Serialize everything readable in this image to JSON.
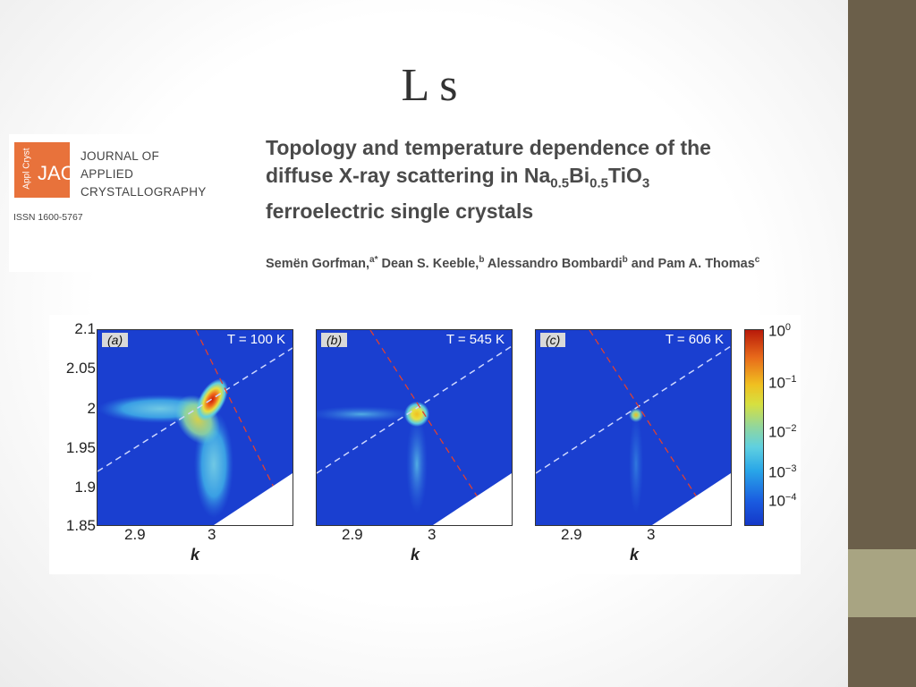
{
  "slide": {
    "title": "L s"
  },
  "journal_logo": {
    "side_text": "Appl Cryst",
    "abbr": "JAC",
    "lines": [
      "JOURNAL OF",
      "APPLIED",
      "CRYSTALLOGRAPHY"
    ],
    "issn": "ISSN 1600-5767"
  },
  "paper": {
    "title_line1": "Topology and temperature dependence of the",
    "title_line2_pre": "diffuse X-ray scattering in Na",
    "title_sub1": "0.5",
    "title_mid": "Bi",
    "title_sub2": "0.5",
    "title_mid2": "TiO",
    "title_sub3": "3",
    "title_line3": "ferroelectric single crystals",
    "authors": [
      {
        "name": "Semën Gorfman,",
        "sup": "a*"
      },
      {
        "name": "Dean S. Keeble,",
        "sup": "b"
      },
      {
        "name": "Alessandro Bombardi",
        "sup": "b"
      },
      {
        "name": "and Pam A. Thomas",
        "sup": "c"
      }
    ]
  },
  "colors": {
    "sidebar": "#6b5f4a",
    "sidebar_accent": "#a8a482",
    "logo": "#e8723b",
    "map_bg": "#1a3fd0"
  },
  "figure": {
    "y_ticks": [
      "2.1",
      "2.05",
      "2",
      "1.95",
      "1.9",
      "1.85"
    ],
    "x_ticks": [
      "2.9",
      "3"
    ],
    "x_label": "k",
    "panels": [
      {
        "label": "(a)",
        "temp": "T = 100 K"
      },
      {
        "label": "(b)",
        "temp": "T = 545 K"
      },
      {
        "label": "(c)",
        "temp": "T = 606 K"
      }
    ],
    "colorbar": {
      "labels": [
        {
          "base": "10",
          "exp": "0"
        },
        {
          "base": "10",
          "exp": "−1"
        },
        {
          "base": "10",
          "exp": "−2"
        },
        {
          "base": "10",
          "exp": "−3"
        },
        {
          "base": "10",
          "exp": "−4"
        }
      ]
    }
  }
}
